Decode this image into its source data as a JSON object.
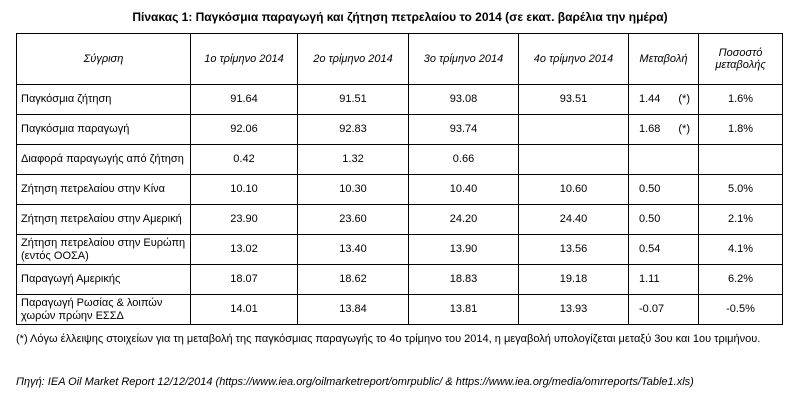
{
  "title": "Πίνακας 1: Παγκόσμια παραγωγή και ζήτηση πετρελαίου το 2014 (σε εκατ. βαρέλια την ημέρα)",
  "table": {
    "header": [
      "Σύγριση",
      "1ο τρίμηνο 2014",
      "2ο τρίμηνο 2014",
      "3ο τρίμηνο 2014",
      "4ο τρίμηνο 2014",
      "Μεταβολή",
      "Ποσοστό μεταβολής"
    ],
    "rows": [
      {
        "label": "Παγκόσμια ζήτηση",
        "cells": [
          "91.64",
          "91.51",
          "93.08",
          "93.51"
        ],
        "change": "1.44",
        "note": "(*)",
        "pct": "1.6%"
      },
      {
        "label": "Παγκόσμια παραγωγή",
        "cells": [
          "92.06",
          "92.83",
          "93.74",
          null
        ],
        "change": "1.68",
        "note": "(*)",
        "pct": "1.8%"
      },
      {
        "label": "Διαφορά παραγωγής από ζήτηση",
        "cells": [
          "0.42",
          "1.32",
          "0.66",
          null
        ],
        "change": null,
        "note": null,
        "pct": null
      },
      {
        "label": "Ζήτηση πετρελαίου στην Κίνα",
        "cells": [
          "10.10",
          "10.30",
          "10.40",
          "10.60"
        ],
        "change": "0.50",
        "note": null,
        "pct": "5.0%"
      },
      {
        "label": "Ζήτηση πετρελαίου στην Αμερική",
        "cells": [
          "23.90",
          "23.60",
          "24.20",
          "24.40"
        ],
        "change": "0.50",
        "note": null,
        "pct": "2.1%"
      },
      {
        "label": "Ζήτηση πετρελαίου στην Ευρώπη (εντός ΟΟΣΑ)",
        "cells": [
          "13.02",
          "13.40",
          "13.90",
          "13.56"
        ],
        "change": "0.54",
        "note": null,
        "pct": "4.1%"
      },
      {
        "label": "Παραγωγή Αμερικής",
        "cells": [
          "18.07",
          "18.62",
          "18.83",
          "19.18"
        ],
        "change": "1.11",
        "note": null,
        "pct": "6.2%"
      },
      {
        "label": "Παραγωγή Ρωσίας & λοιπών χωρών πρώην ΕΣΣΔ",
        "cells": [
          "14.01",
          "13.84",
          "13.81",
          "13.93"
        ],
        "change": "-0.07",
        "note": null,
        "pct": "-0.5%"
      }
    ]
  },
  "footnote": "(*) Λόγω έλλειψης στοιχείων για τη μεταβολή της παγκόσμιας παραγωγής το 4ο τρίμηνο του 2014, η μεγαβολή υπολογίζεται μεταξύ 3ου και 1ου τριμήνου.",
  "source": "Πηγή: IEA Oil Market Report 12/12/2014 (https://www.iea.org/oilmarketreport/omrpublic/ & https://www.iea.org/media/omrreports/Table1.xls)"
}
